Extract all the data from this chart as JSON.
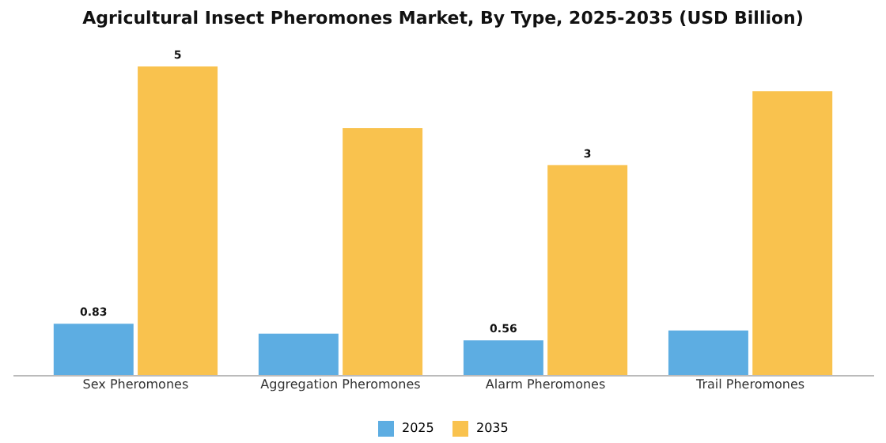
{
  "chart_data": {
    "type": "bar",
    "title": "Agricultural Insect Pheromones Market, By Type, 2025-2035 (USD Billion)",
    "categories": [
      "Sex Pheromones",
      "Aggregation Pheromones",
      "Alarm Pheromones",
      "Trail Pheromones"
    ],
    "series": [
      {
        "name": "2025",
        "color": "#5dade2",
        "values": [
          0.83,
          0.67,
          0.56,
          0.72
        ],
        "value_labels": [
          "0.83",
          null,
          "0.56",
          null
        ]
      },
      {
        "name": "2035",
        "color": "#f9c24e",
        "values": [
          5,
          4.0,
          3.4,
          4.6
        ],
        "value_labels": [
          "5",
          null,
          "3",
          null
        ]
      }
    ],
    "legend": "bottom",
    "grid": false
  }
}
